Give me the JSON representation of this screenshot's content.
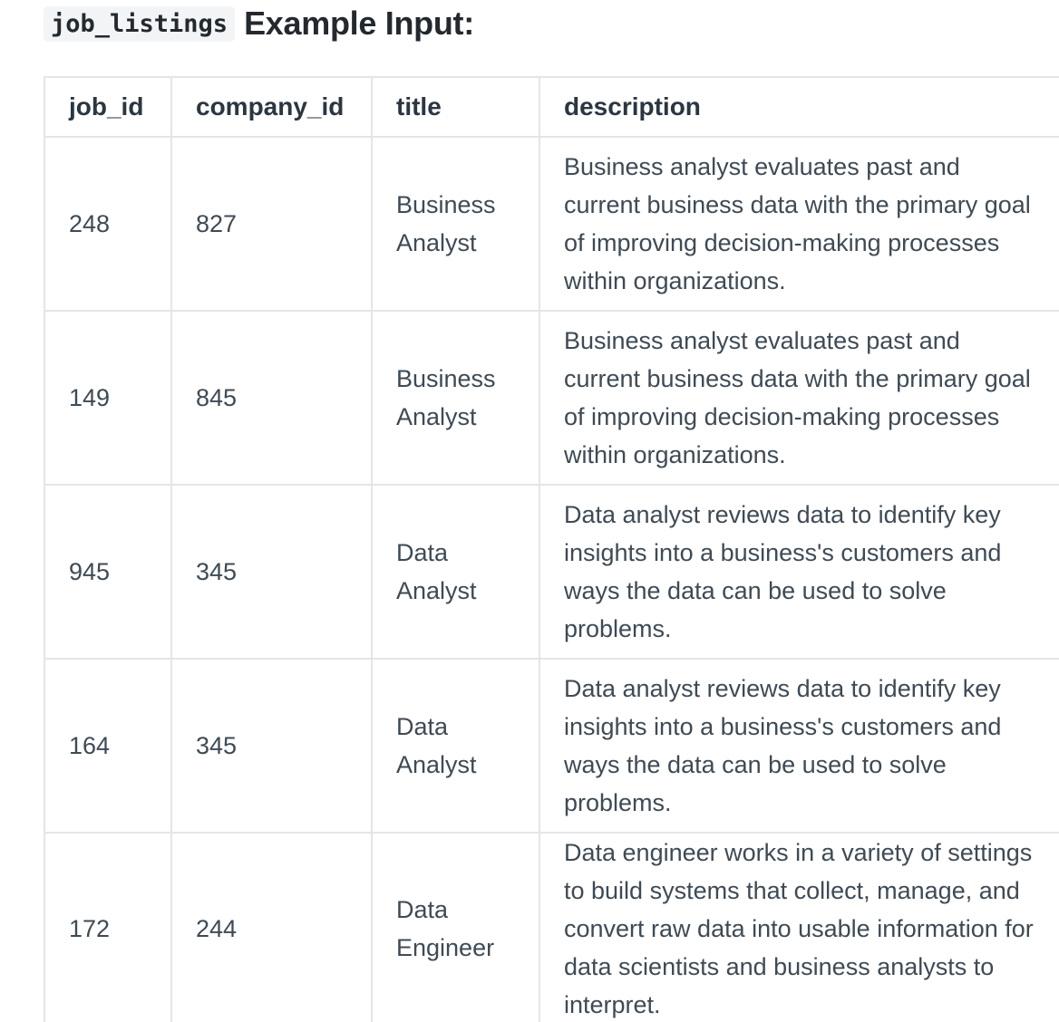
{
  "heading": {
    "code": "job_listings",
    "text": "Example Input:"
  },
  "table": {
    "headers": [
      "job_id",
      "company_id",
      "title",
      "description"
    ],
    "rows": [
      {
        "job_id": "248",
        "company_id": "827",
        "title": "Business Analyst",
        "description": "Business analyst evaluates past and current business data with the primary goal of improving decision-making processes within organizations."
      },
      {
        "job_id": "149",
        "company_id": "845",
        "title": "Business Analyst",
        "description": "Business analyst evaluates past and current business data with the primary goal of improving decision-making processes within organizations."
      },
      {
        "job_id": "945",
        "company_id": "345",
        "title": "Data Analyst",
        "description": "Data analyst reviews data to identify key insights into a business's customers and ways the data can be used to solve problems."
      },
      {
        "job_id": "164",
        "company_id": "345",
        "title": "Data Analyst",
        "description": "Data analyst reviews data to identify key insights into a business's customers and ways the data can be used to solve problems."
      },
      {
        "job_id": "172",
        "company_id": "244",
        "title": "Data Engineer",
        "description": "Data engineer works in a variety of settings to build systems that collect, manage, and convert raw data into usable information for data scientists and business analysts to interpret."
      }
    ]
  }
}
